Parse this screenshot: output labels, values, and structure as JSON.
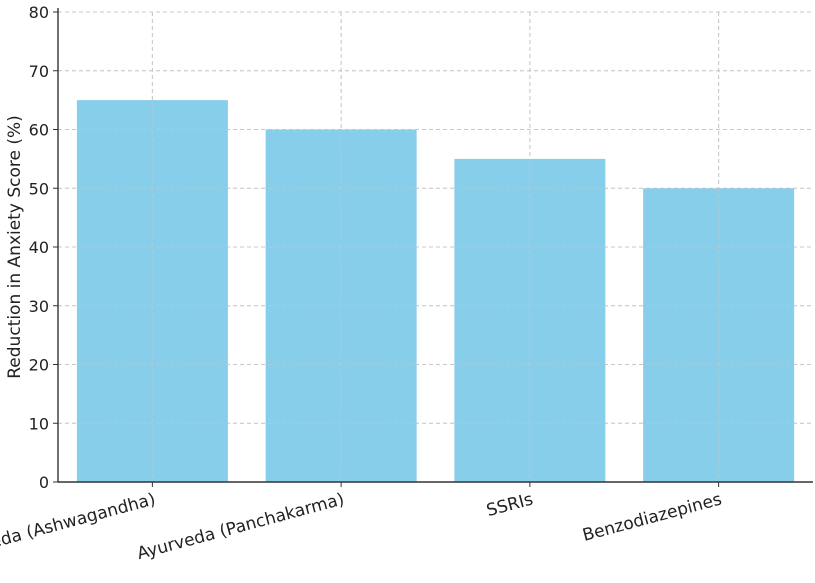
{
  "chart_data": {
    "type": "bar",
    "title": "",
    "xlabel": "",
    "ylabel": "Reduction in Anxiety Score (%)",
    "categories": [
      "Ayurveda (Ashwagandha)",
      "Ayurveda (Panchakarma)",
      "SSRIs",
      "Benzodiazepines"
    ],
    "values": [
      65,
      60,
      55,
      50
    ],
    "ylim": [
      0,
      80
    ],
    "yticks": [
      0,
      10,
      20,
      30,
      40,
      50,
      60,
      70,
      80
    ],
    "grid": true,
    "bar_color": "#87CEEB"
  }
}
